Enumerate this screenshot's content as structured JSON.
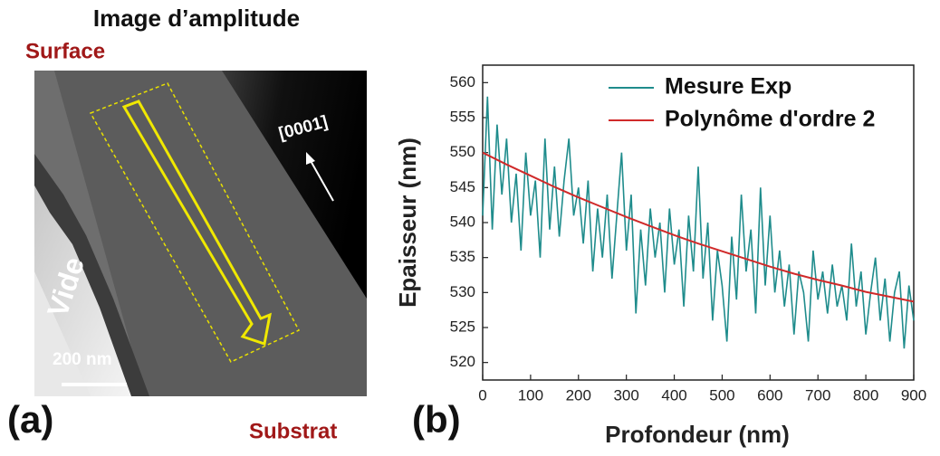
{
  "panel_a": {
    "title": "Image d’amplitude",
    "top_label": "Surface",
    "bottom_label": "Substrat",
    "direction": "[0001]",
    "region": "Vide",
    "scale_bar": "200 nm",
    "panel_label": "(a)"
  },
  "chart_data": {
    "type": "line",
    "panel_label": "(b)",
    "x_label": "Profondeur (nm)",
    "y_label": "Epaisseur (nm)",
    "xlim": [
      0,
      900
    ],
    "ylim": [
      517.5,
      562.5
    ],
    "xticks": [
      0,
      100,
      200,
      300,
      400,
      500,
      600,
      700,
      800,
      900
    ],
    "yticks": [
      520,
      525,
      530,
      535,
      540,
      545,
      550,
      555,
      560
    ],
    "legend": "top-right",
    "series": [
      {
        "name": "Mesure Exp",
        "color": "#1f8c8c",
        "x": [
          0,
          10,
          20,
          30,
          40,
          50,
          60,
          70,
          80,
          90,
          100,
          110,
          120,
          130,
          140,
          150,
          160,
          170,
          180,
          190,
          200,
          210,
          220,
          230,
          240,
          250,
          260,
          270,
          280,
          290,
          300,
          310,
          320,
          330,
          340,
          350,
          360,
          370,
          380,
          390,
          400,
          410,
          420,
          430,
          440,
          450,
          460,
          470,
          480,
          490,
          500,
          510,
          520,
          530,
          540,
          550,
          560,
          570,
          580,
          590,
          600,
          610,
          620,
          630,
          640,
          650,
          660,
          670,
          680,
          690,
          700,
          710,
          720,
          730,
          740,
          750,
          760,
          770,
          780,
          790,
          800,
          810,
          820,
          830,
          840,
          850,
          860,
          870,
          880,
          890,
          900
        ],
        "values": [
          541,
          558,
          539,
          554,
          544,
          552,
          540,
          547,
          536,
          550,
          541,
          546,
          535,
          552,
          539,
          548,
          538,
          546,
          552,
          541,
          545,
          537,
          546,
          533,
          542,
          535,
          544,
          532,
          541,
          550,
          536,
          544,
          527,
          539,
          531,
          542,
          535,
          540,
          530,
          542,
          534,
          539,
          528,
          541,
          533,
          548,
          532,
          540,
          526,
          536,
          531,
          523,
          538,
          529,
          544,
          533,
          539,
          527,
          545,
          531,
          541,
          530,
          536,
          528,
          534,
          524,
          533,
          530,
          523,
          536,
          529,
          533,
          527,
          534,
          528,
          531,
          526,
          537,
          528,
          533,
          524,
          530,
          535,
          526,
          532,
          523,
          530,
          533,
          522,
          531,
          526
        ]
      },
      {
        "name": "Polynôme d'ordre 2",
        "color": "#d02a2a",
        "x": [
          0,
          50,
          100,
          150,
          200,
          250,
          300,
          350,
          400,
          450,
          500,
          550,
          600,
          650,
          700,
          750,
          800,
          850,
          900
        ],
        "values": [
          550,
          548.3,
          546.7,
          545.1,
          543.6,
          542.2,
          540.8,
          539.5,
          538.2,
          537,
          535.9,
          534.8,
          533.7,
          532.7,
          531.8,
          531,
          530.1,
          529.4,
          528.7
        ]
      }
    ]
  }
}
